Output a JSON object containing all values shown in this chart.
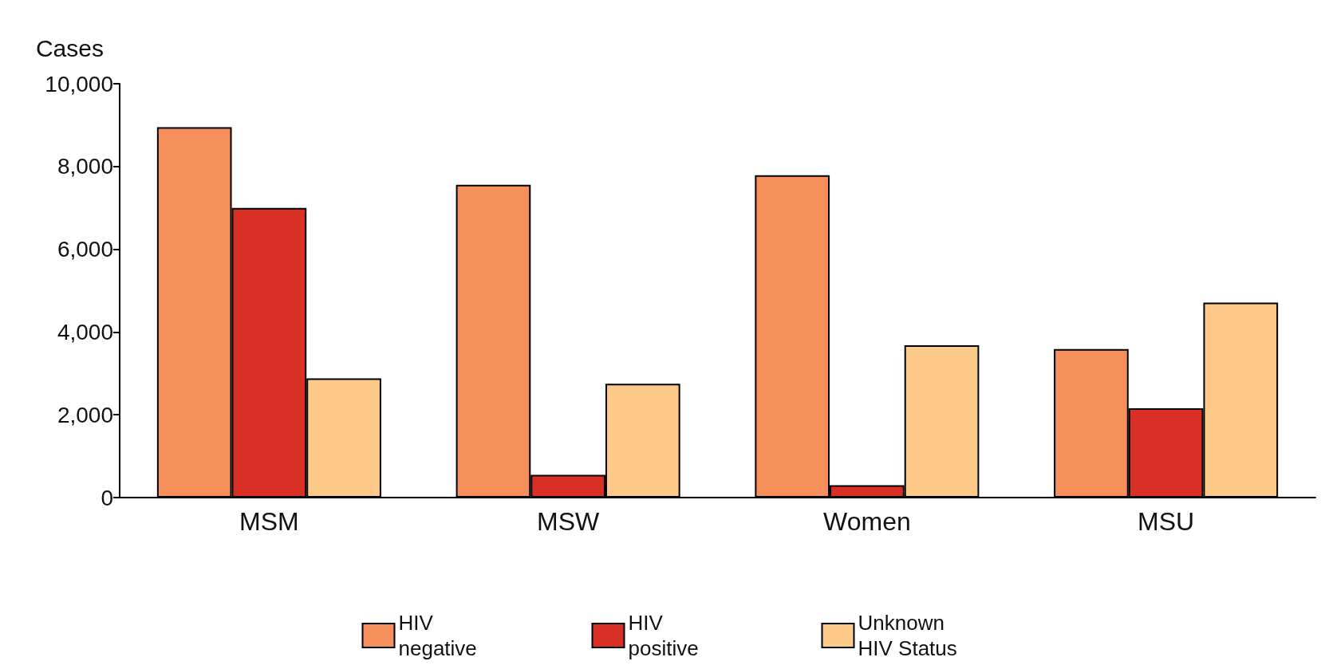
{
  "chart_data": {
    "type": "bar",
    "ylabel": "Cases",
    "categories": [
      "MSM",
      "MSW",
      "Women",
      "MSU"
    ],
    "series": [
      {
        "name": "HIV negative",
        "color": "#f58f5b",
        "values": [
          8950,
          7560,
          7790,
          3590
        ]
      },
      {
        "name": "HIV positive",
        "color": "#d93026",
        "values": [
          7000,
          550,
          300,
          2160
        ]
      },
      {
        "name": "Unknown HIV Status",
        "color": "#fdca8a",
        "values": [
          2880,
          2750,
          3680,
          4710
        ]
      }
    ],
    "ylim": [
      0,
      10000
    ],
    "yticks": [
      0,
      {
        "value": 2000,
        "label": "2,000"
      },
      {
        "value": 4000,
        "label": "4,000"
      },
      {
        "value": 6000,
        "label": "6,000"
      },
      {
        "value": 8000,
        "label": "8,000"
      },
      {
        "value": 10000,
        "label": "10,000"
      }
    ],
    "grid": false,
    "legend": "bottom"
  }
}
